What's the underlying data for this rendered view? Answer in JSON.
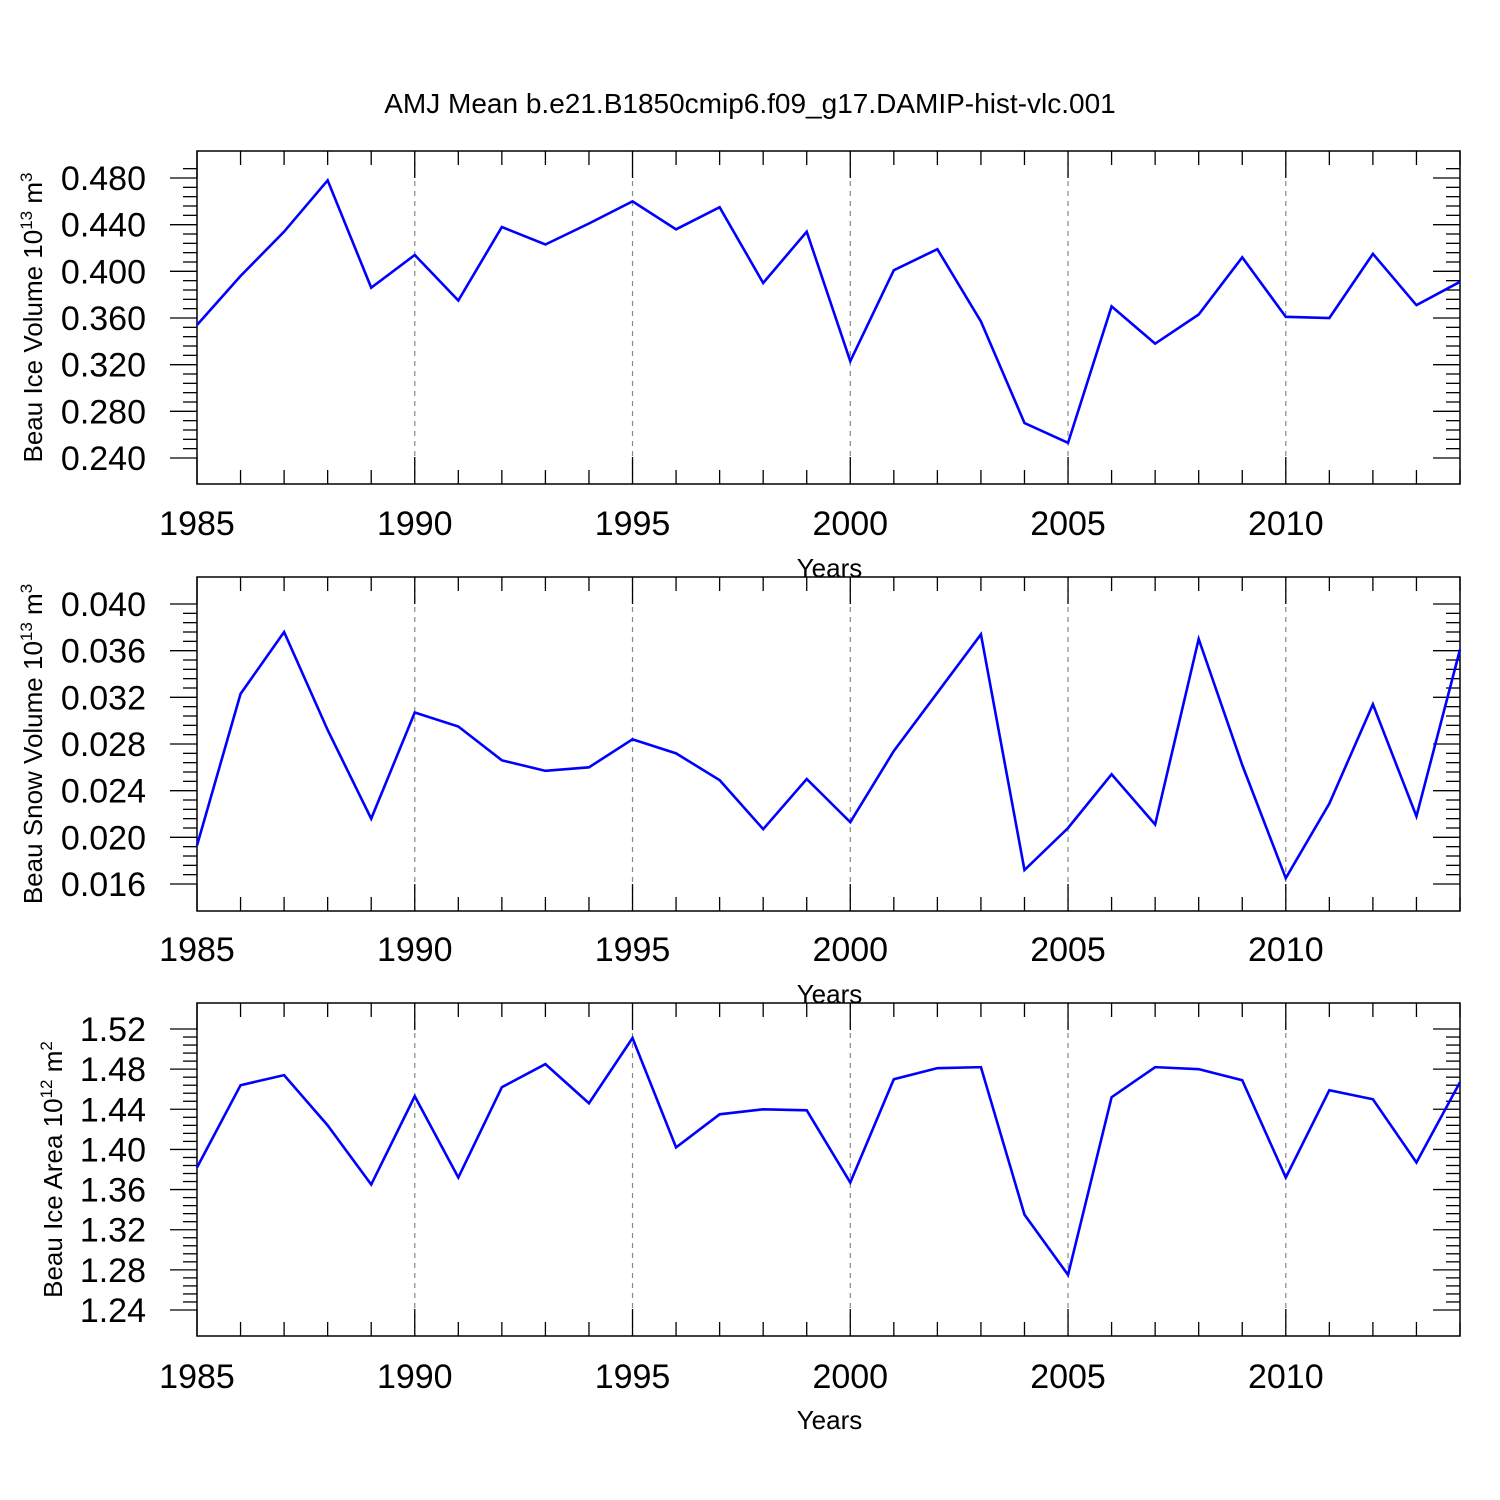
{
  "title": "AMJ Mean b.e21.B1850cmip6.f09_g17.DAMIP-hist-vlc.001",
  "colors": {
    "line": "#0000ff",
    "axes": "#000000",
    "grid": "#888888"
  },
  "chart_data": [
    {
      "type": "line",
      "ylabel": {
        "text": "Beau Ice Volume 10",
        "exp": "13",
        "unit": " m",
        "unit_exp": "3"
      },
      "xlabel": "Years",
      "xlim": [
        1985,
        2014
      ],
      "ylim": [
        0.24,
        0.49
      ],
      "x_ticks": [
        1985,
        1990,
        1995,
        2000,
        2005,
        2010
      ],
      "x_tick_labels": [
        "1985",
        "1990",
        "1995",
        "2000",
        "2005",
        "2010"
      ],
      "y_ticks": [
        0.24,
        0.28,
        0.32,
        0.36,
        0.4,
        0.44,
        0.48
      ],
      "y_tick_labels": [
        "0.240",
        "0.280",
        "0.320",
        "0.360",
        "0.400",
        "0.440",
        "0.480"
      ],
      "grid": "vertical dashed at major x ticks",
      "x": [
        1985,
        1986,
        1987,
        1988,
        1989,
        1990,
        1991,
        1992,
        1993,
        1994,
        1995,
        1996,
        1997,
        1998,
        1999,
        2000,
        2001,
        2002,
        2003,
        2004,
        2005,
        2006,
        2007,
        2008,
        2009,
        2010,
        2011,
        2012,
        2013,
        2014
      ],
      "values": [
        0.354,
        0.396,
        0.434,
        0.478,
        0.386,
        0.414,
        0.375,
        0.438,
        0.423,
        0.441,
        0.46,
        0.436,
        0.455,
        0.39,
        0.434,
        0.323,
        0.401,
        0.419,
        0.357,
        0.27,
        0.253,
        0.37,
        0.338,
        0.363,
        0.412,
        0.361,
        0.36,
        0.415,
        0.371,
        0.391
      ]
    },
    {
      "type": "line",
      "ylabel": {
        "text": "Beau Snow Volume 10",
        "exp": "13",
        "unit": " m",
        "unit_exp": "3"
      },
      "xlabel": "Years",
      "xlim": [
        1985,
        2014
      ],
      "ylim": [
        0.016,
        0.04
      ],
      "x_ticks": [
        1985,
        1990,
        1995,
        2000,
        2005,
        2010
      ],
      "x_tick_labels": [
        "1985",
        "1990",
        "1995",
        "2000",
        "2005",
        "2010"
      ],
      "y_ticks": [
        0.016,
        0.02,
        0.024,
        0.028,
        0.032,
        0.036,
        0.04
      ],
      "y_tick_labels": [
        "0.016",
        "0.020",
        "0.024",
        "0.028",
        "0.032",
        "0.036",
        "0.040"
      ],
      "grid": "vertical dashed at major x ticks",
      "x": [
        1985,
        1986,
        1987,
        1988,
        1989,
        1990,
        1991,
        1992,
        1993,
        1994,
        1995,
        1996,
        1997,
        1998,
        1999,
        2000,
        2001,
        2002,
        2003,
        2004,
        2005,
        2006,
        2007,
        2008,
        2009,
        2010,
        2011,
        2012,
        2013,
        2014
      ],
      "values": [
        0.0193,
        0.0323,
        0.0376,
        0.0292,
        0.0216,
        0.0307,
        0.0295,
        0.0266,
        0.0257,
        0.026,
        0.0284,
        0.0272,
        0.0249,
        0.0207,
        0.025,
        0.0213,
        0.0274,
        0.0324,
        0.0374,
        0.0172,
        0.0208,
        0.0254,
        0.0211,
        0.037,
        0.0262,
        0.0165,
        0.0229,
        0.0314,
        0.0218,
        0.0361
      ]
    },
    {
      "type": "line",
      "ylabel": {
        "text": "Beau Ice Area 10",
        "exp": "12",
        "unit": " m",
        "unit_exp": "2"
      },
      "xlabel": "Years",
      "xlim": [
        1985,
        2014
      ],
      "ylim": [
        1.24,
        1.52
      ],
      "x_ticks": [
        1985,
        1990,
        1995,
        2000,
        2005,
        2010
      ],
      "x_tick_labels": [
        "1985",
        "1990",
        "1995",
        "2000",
        "2005",
        "2010"
      ],
      "y_ticks": [
        1.24,
        1.28,
        1.32,
        1.36,
        1.4,
        1.44,
        1.48,
        1.52
      ],
      "y_tick_labels": [
        "1.24",
        "1.28",
        "1.32",
        "1.36",
        "1.40",
        "1.44",
        "1.48",
        "1.52"
      ],
      "grid": "vertical dashed at major x ticks",
      "x": [
        1985,
        1986,
        1987,
        1988,
        1989,
        1990,
        1991,
        1992,
        1993,
        1994,
        1995,
        1996,
        1997,
        1998,
        1999,
        2000,
        2001,
        2002,
        2003,
        2004,
        2005,
        2006,
        2007,
        2008,
        2009,
        2010,
        2011,
        2012,
        2013,
        2014
      ],
      "values": [
        1.382,
        1.464,
        1.474,
        1.424,
        1.365,
        1.453,
        1.372,
        1.462,
        1.485,
        1.446,
        1.511,
        1.402,
        1.435,
        1.44,
        1.439,
        1.367,
        1.47,
        1.481,
        1.482,
        1.335,
        1.275,
        1.452,
        1.482,
        1.48,
        1.469,
        1.372,
        1.459,
        1.45,
        1.387,
        1.467
      ]
    }
  ]
}
